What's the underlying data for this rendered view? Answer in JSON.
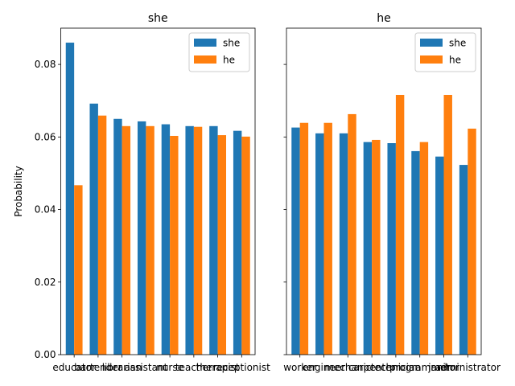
{
  "chart_data": [
    {
      "type": "bar",
      "title": "she",
      "xlabel": "",
      "ylabel": "Probability",
      "ylim": [
        0,
        0.09
      ],
      "yticks": [
        "0.00",
        "0.02",
        "0.04",
        "0.06",
        "0.08"
      ],
      "categories": [
        "educator",
        "bartender",
        "librarian",
        "assistant",
        "nurse",
        "teacher",
        "therapist",
        "receptionist"
      ],
      "series": [
        {
          "name": "she",
          "color": "#1f77b4",
          "values": [
            0.086,
            0.0692,
            0.065,
            0.0643,
            0.0635,
            0.063,
            0.063,
            0.0617
          ]
        },
        {
          "name": "he",
          "color": "#ff7f0e",
          "values": [
            0.0467,
            0.0659,
            0.063,
            0.063,
            0.0603,
            0.0628,
            0.0605,
            0.0601
          ]
        }
      ],
      "legend": "top-right",
      "grid": false
    },
    {
      "type": "bar",
      "title": "he",
      "xlabel": "",
      "ylabel": "",
      "ylim": [
        0,
        0.09
      ],
      "categories": [
        "worker",
        "engineer",
        "mechanic",
        "carpenter",
        "technician",
        "programmer",
        "janitor",
        "administrator"
      ],
      "series": [
        {
          "name": "she",
          "color": "#1f77b4",
          "values": [
            0.0626,
            0.061,
            0.061,
            0.0586,
            0.0583,
            0.0561,
            0.0546,
            0.0523
          ]
        },
        {
          "name": "he",
          "color": "#ff7f0e",
          "values": [
            0.0639,
            0.0639,
            0.0663,
            0.0592,
            0.0716,
            0.0586,
            0.0716,
            0.0623
          ]
        }
      ],
      "legend": "top-right",
      "grid": false
    }
  ]
}
